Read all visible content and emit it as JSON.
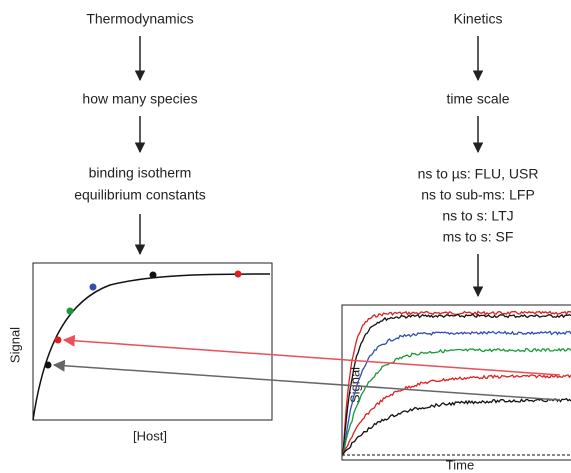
{
  "thermodynamics": {
    "title": "Thermodynamics",
    "step": "how many species",
    "result": [
      "binding isotherm",
      "equilibrium constants"
    ],
    "plot": {
      "y_label": "Signal",
      "x_label": "[Host]"
    }
  },
  "kinetics": {
    "title": "Kinetics",
    "step": "time scale",
    "methods": [
      "ns to µs: FLU, USR",
      "ns to sub-ms: LFP",
      "ns to s: LTJ",
      "ms to s: SF"
    ],
    "plot": {
      "y_label": "Signal",
      "x_label": "Time"
    }
  }
}
